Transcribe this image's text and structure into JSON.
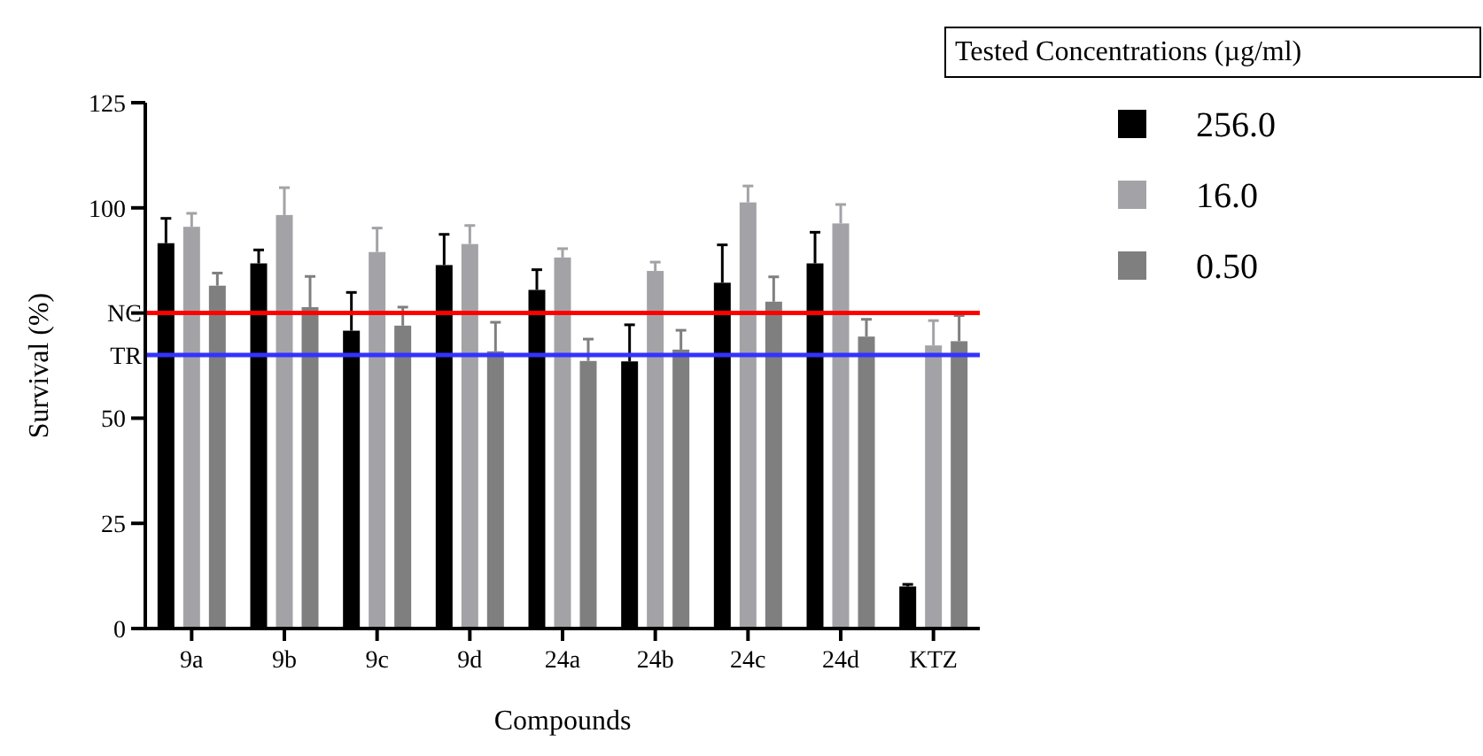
{
  "chart_data": {
    "type": "bar",
    "xlabel": "Compounds",
    "ylabel": "Survival (%)",
    "legend_title": "Tested Concentrations (µg/ml)",
    "legend": "top right",
    "categories": [
      "9a",
      "9b",
      "9c",
      "9d",
      "24a",
      "24b",
      "24c",
      "24d",
      "KTZ"
    ],
    "ylim": [
      0,
      125
    ],
    "yticks": [
      0,
      25,
      50,
      {
        "value": 75,
        "label": null
      },
      100,
      125
    ],
    "grid": false,
    "series": [
      {
        "name": "256.0",
        "color": "#000000",
        "values": [
          91.6,
          86.8,
          70.8,
          86.4,
          80.5,
          63.5,
          82.2,
          86.8,
          10
        ],
        "errors": [
          [
            91.6,
            97.5
          ],
          [
            86.8,
            90
          ],
          [
            70.8,
            79.9
          ],
          [
            86.4,
            93.7
          ],
          [
            80.5,
            85.3
          ],
          [
            63.5,
            72.2
          ],
          [
            82.2,
            91.2
          ],
          [
            86.8,
            94.2
          ],
          [
            10,
            10.5
          ]
        ]
      },
      {
        "name": "16.0",
        "color": "#a3a3a7",
        "values": [
          95.5,
          98.3,
          89.5,
          91.4,
          88.2,
          85,
          101.3,
          96.3,
          67.3
        ],
        "errors": [
          [
            95.5,
            98.7
          ],
          [
            98.3,
            104.8
          ],
          [
            89.5,
            95.2
          ],
          [
            91.4,
            95.8
          ],
          [
            88.2,
            90.3
          ],
          [
            85,
            87.1
          ],
          [
            101.3,
            105.2
          ],
          [
            96.3,
            100.8
          ],
          [
            67.3,
            73.2
          ]
        ]
      },
      {
        "name": "0.50",
        "color": "#7f7f7f",
        "values": [
          81.5,
          76.4,
          72,
          65.9,
          63.6,
          66.3,
          77.7,
          69.4,
          68.3
        ],
        "errors": [
          [
            81.5,
            84.5
          ],
          [
            76.4,
            83.7
          ],
          [
            72,
            76.4
          ],
          [
            65.9,
            72.8
          ],
          [
            63.6,
            68.8
          ],
          [
            66.3,
            70.9
          ],
          [
            77.7,
            83.6
          ],
          [
            69.4,
            73.5
          ],
          [
            68.3,
            74.4
          ]
        ]
      }
    ],
    "ref_lines": [
      {
        "axis": "y",
        "value": 75,
        "label": "NC",
        "color": "#ff0000"
      },
      {
        "axis": "y",
        "value": 65,
        "label": "TR",
        "color": "#3333ff"
      }
    ]
  }
}
